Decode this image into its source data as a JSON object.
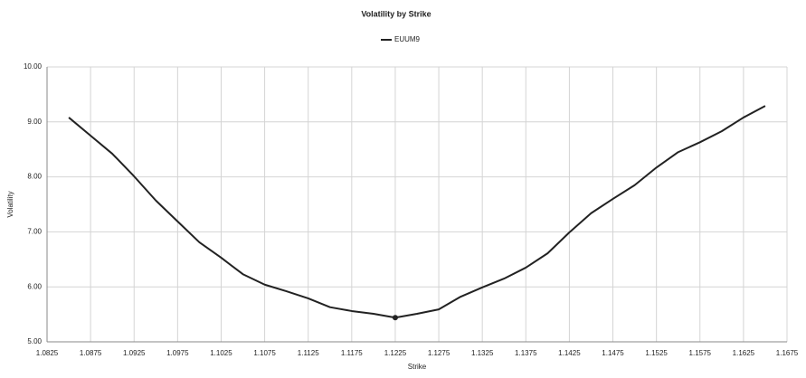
{
  "chart_data": {
    "type": "line",
    "title": "Volatility by Strike",
    "x_label": "Strike",
    "y_label": "Volatility",
    "x": [
      1.085,
      1.0875,
      1.09,
      1.0925,
      1.095,
      1.0975,
      1.1,
      1.1025,
      1.105,
      1.1075,
      1.11,
      1.1125,
      1.115,
      1.1175,
      1.12,
      1.1225,
      1.125,
      1.1275,
      1.13,
      1.1325,
      1.135,
      1.1375,
      1.14,
      1.1425,
      1.145,
      1.1475,
      1.15,
      1.1525,
      1.155,
      1.1575,
      1.16,
      1.1625,
      1.165
    ],
    "series": [
      {
        "name": "EUUM9",
        "color": "#222222",
        "values": [
          9.08,
          8.75,
          8.42,
          8.01,
          7.57,
          7.19,
          6.81,
          6.53,
          6.23,
          6.04,
          5.92,
          5.79,
          5.63,
          5.56,
          5.51,
          5.44,
          5.51,
          5.59,
          5.82,
          5.99,
          6.15,
          6.35,
          6.61,
          6.99,
          7.34,
          7.6,
          7.85,
          8.17,
          8.45,
          8.63,
          8.83,
          9.08,
          9.29
        ]
      }
    ],
    "highlight_index": 15,
    "xlim": [
      1.0825,
      1.1675
    ],
    "xticks": [
      1.0825,
      1.0875,
      1.0925,
      1.0975,
      1.1025,
      1.1075,
      1.1125,
      1.1175,
      1.1225,
      1.1275,
      1.1325,
      1.1375,
      1.1425,
      1.1475,
      1.1525,
      1.1575,
      1.1625,
      1.1675
    ],
    "ylim": [
      5,
      10
    ],
    "yticks": [
      {
        "value": 5,
        "label": "5.00"
      },
      {
        "value": 6,
        "label": "6.00"
      },
      {
        "value": 7,
        "label": "7.00"
      },
      {
        "value": 8,
        "label": "8.00"
      },
      {
        "value": 9,
        "label": "9.00"
      },
      {
        "value": 10,
        "label": "10.00"
      }
    ],
    "grid": true
  }
}
